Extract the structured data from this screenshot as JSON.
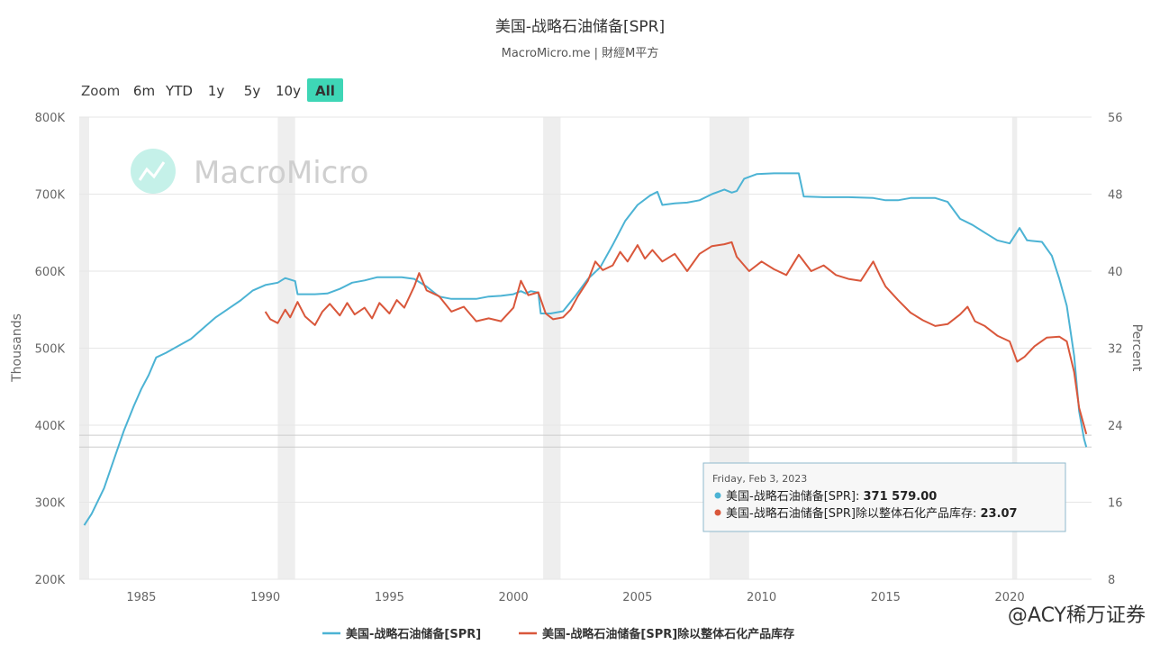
{
  "chart_data": {
    "type": "line",
    "title": "美国-战略石油储备[SPR]",
    "subtitle": "MacroMicro.me | 財經M平方",
    "watermark": "MacroMicro",
    "credit": "@ACY稀万证券",
    "y_left": {
      "title": "Thousands",
      "range": [
        200000,
        800000
      ],
      "ticks": [
        {
          "v": 200000,
          "label": "200K"
        },
        {
          "v": 300000,
          "label": "300K"
        },
        {
          "v": 400000,
          "label": "400K"
        },
        {
          "v": 500000,
          "label": "500K"
        },
        {
          "v": 600000,
          "label": "600K"
        },
        {
          "v": 700000,
          "label": "700K"
        },
        {
          "v": 800000,
          "label": "800K"
        }
      ]
    },
    "y_right": {
      "title": "Percent",
      "range": [
        8,
        56
      ],
      "ticks": [
        {
          "v": 8,
          "label": "8"
        },
        {
          "v": 16,
          "label": "16"
        },
        {
          "v": 24,
          "label": "24"
        },
        {
          "v": 32,
          "label": "32"
        },
        {
          "v": 40,
          "label": "40"
        },
        {
          "v": 48,
          "label": "48"
        },
        {
          "v": 56,
          "label": "56"
        }
      ]
    },
    "x_axis": {
      "range": [
        1982.5,
        2023.3
      ],
      "ticks": [
        {
          "v": 1985,
          "label": "1985"
        },
        {
          "v": 1990,
          "label": "1990"
        },
        {
          "v": 1995,
          "label": "1995"
        },
        {
          "v": 2000,
          "label": "2000"
        },
        {
          "v": 2005,
          "label": "2005"
        },
        {
          "v": 2010,
          "label": "2010"
        },
        {
          "v": 2015,
          "label": "2015"
        },
        {
          "v": 2020,
          "label": "2020"
        }
      ]
    },
    "grid": true,
    "legend_position": "bottom-center",
    "recession_bands": [
      [
        1982.5,
        1982.9
      ],
      [
        1990.5,
        1991.2
      ],
      [
        2001.2,
        2001.9
      ],
      [
        2007.9,
        2009.5
      ],
      [
        2020.1,
        2020.3
      ]
    ],
    "zoom": {
      "label": "Zoom",
      "buttons": [
        "6m",
        "YTD",
        "1y",
        "5y",
        "10y",
        "All"
      ],
      "active": "All"
    },
    "series": [
      {
        "name": "美国-战略石油储备[SPR]",
        "axis": "left",
        "color": "#4cb3d4",
        "points": [
          [
            1982.7,
            270000
          ],
          [
            1983.0,
            285000
          ],
          [
            1983.5,
            318000
          ],
          [
            1984.0,
            365000
          ],
          [
            1984.3,
            393000
          ],
          [
            1984.7,
            425000
          ],
          [
            1985.0,
            447000
          ],
          [
            1985.3,
            465000
          ],
          [
            1985.6,
            488000
          ],
          [
            1986.0,
            494000
          ],
          [
            1986.5,
            503000
          ],
          [
            1987.0,
            512000
          ],
          [
            1987.5,
            526000
          ],
          [
            1988.0,
            540000
          ],
          [
            1988.5,
            551000
          ],
          [
            1989.0,
            562000
          ],
          [
            1989.5,
            575000
          ],
          [
            1990.0,
            582000
          ],
          [
            1990.5,
            585000
          ],
          [
            1990.8,
            591000
          ],
          [
            1991.2,
            587000
          ],
          [
            1991.3,
            570000
          ],
          [
            1992.0,
            570000
          ],
          [
            1992.5,
            571000
          ],
          [
            1993.0,
            577000
          ],
          [
            1993.5,
            585000
          ],
          [
            1994.0,
            588000
          ],
          [
            1994.5,
            592000
          ],
          [
            1995.0,
            592000
          ],
          [
            1995.5,
            592000
          ],
          [
            1996.0,
            590000
          ],
          [
            1996.5,
            580000
          ],
          [
            1997.0,
            567000
          ],
          [
            1997.5,
            564000
          ],
          [
            1998.0,
            564000
          ],
          [
            1998.5,
            564000
          ],
          [
            1999.0,
            567000
          ],
          [
            1999.5,
            568000
          ],
          [
            2000.0,
            570000
          ],
          [
            2000.3,
            574000
          ],
          [
            2000.5,
            571000
          ],
          [
            2000.7,
            574000
          ],
          [
            2001.0,
            572000
          ],
          [
            2001.1,
            545000
          ],
          [
            2001.5,
            545000
          ],
          [
            2002.0,
            548000
          ],
          [
            2002.5,
            568000
          ],
          [
            2003.0,
            590000
          ],
          [
            2003.5,
            605000
          ],
          [
            2004.0,
            634000
          ],
          [
            2004.5,
            665000
          ],
          [
            2005.0,
            686000
          ],
          [
            2005.5,
            698000
          ],
          [
            2005.8,
            703000
          ],
          [
            2006.0,
            686000
          ],
          [
            2006.5,
            688000
          ],
          [
            2007.0,
            689000
          ],
          [
            2007.5,
            692000
          ],
          [
            2008.0,
            700000
          ],
          [
            2008.5,
            706000
          ],
          [
            2008.8,
            702000
          ],
          [
            2009.0,
            704000
          ],
          [
            2009.3,
            720000
          ],
          [
            2009.8,
            726000
          ],
          [
            2010.5,
            727000
          ],
          [
            2011.0,
            727000
          ],
          [
            2011.5,
            727000
          ],
          [
            2011.7,
            697000
          ],
          [
            2012.5,
            696000
          ],
          [
            2013.5,
            696000
          ],
          [
            2014.5,
            695000
          ],
          [
            2015.0,
            692000
          ],
          [
            2015.5,
            692000
          ],
          [
            2016.0,
            695000
          ],
          [
            2016.5,
            695000
          ],
          [
            2017.0,
            695000
          ],
          [
            2017.5,
            690000
          ],
          [
            2018.0,
            668000
          ],
          [
            2018.5,
            660000
          ],
          [
            2019.0,
            650000
          ],
          [
            2019.5,
            640000
          ],
          [
            2020.0,
            636000
          ],
          [
            2020.4,
            656000
          ],
          [
            2020.7,
            640000
          ],
          [
            2021.3,
            638000
          ],
          [
            2021.7,
            620000
          ],
          [
            2022.0,
            590000
          ],
          [
            2022.3,
            555000
          ],
          [
            2022.6,
            490000
          ],
          [
            2022.8,
            418000
          ],
          [
            2023.0,
            382000
          ],
          [
            2023.09,
            371579
          ]
        ]
      },
      {
        "name": "美国-战略石油储备[SPR]除以整体石化产品库存",
        "axis": "right",
        "color": "#d9573b",
        "points": [
          [
            1990.0,
            35.8
          ],
          [
            1990.2,
            35.0
          ],
          [
            1990.5,
            34.6
          ],
          [
            1990.8,
            36.0
          ],
          [
            1991.0,
            35.2
          ],
          [
            1991.3,
            36.8
          ],
          [
            1991.6,
            35.3
          ],
          [
            1992.0,
            34.4
          ],
          [
            1992.3,
            35.8
          ],
          [
            1992.6,
            36.6
          ],
          [
            1993.0,
            35.4
          ],
          [
            1993.3,
            36.7
          ],
          [
            1993.6,
            35.5
          ],
          [
            1994.0,
            36.2
          ],
          [
            1994.3,
            35.1
          ],
          [
            1994.6,
            36.7
          ],
          [
            1995.0,
            35.6
          ],
          [
            1995.3,
            37.0
          ],
          [
            1995.6,
            36.2
          ],
          [
            1996.0,
            38.4
          ],
          [
            1996.2,
            39.8
          ],
          [
            1996.5,
            38.0
          ],
          [
            1997.0,
            37.4
          ],
          [
            1997.5,
            35.8
          ],
          [
            1998.0,
            36.3
          ],
          [
            1998.5,
            34.8
          ],
          [
            1999.0,
            35.1
          ],
          [
            1999.5,
            34.8
          ],
          [
            2000.0,
            36.2
          ],
          [
            2000.3,
            39.0
          ],
          [
            2000.6,
            37.5
          ],
          [
            2001.0,
            37.8
          ],
          [
            2001.3,
            35.6
          ],
          [
            2001.6,
            35.0
          ],
          [
            2002.0,
            35.2
          ],
          [
            2002.3,
            36.0
          ],
          [
            2002.6,
            37.4
          ],
          [
            2003.0,
            39.0
          ],
          [
            2003.3,
            41.0
          ],
          [
            2003.6,
            40.1
          ],
          [
            2004.0,
            40.6
          ],
          [
            2004.3,
            42.0
          ],
          [
            2004.6,
            41.0
          ],
          [
            2005.0,
            42.7
          ],
          [
            2005.3,
            41.3
          ],
          [
            2005.6,
            42.2
          ],
          [
            2006.0,
            41.0
          ],
          [
            2006.5,
            41.8
          ],
          [
            2007.0,
            40.0
          ],
          [
            2007.5,
            41.8
          ],
          [
            2008.0,
            42.6
          ],
          [
            2008.5,
            42.8
          ],
          [
            2008.8,
            43.0
          ],
          [
            2009.0,
            41.5
          ],
          [
            2009.5,
            40.0
          ],
          [
            2010.0,
            41.0
          ],
          [
            2010.5,
            40.2
          ],
          [
            2011.0,
            39.6
          ],
          [
            2011.5,
            41.7
          ],
          [
            2012.0,
            40.0
          ],
          [
            2012.5,
            40.6
          ],
          [
            2013.0,
            39.6
          ],
          [
            2013.5,
            39.2
          ],
          [
            2014.0,
            39.0
          ],
          [
            2014.5,
            41.0
          ],
          [
            2014.8,
            39.4
          ],
          [
            2015.0,
            38.4
          ],
          [
            2015.5,
            37.0
          ],
          [
            2016.0,
            35.7
          ],
          [
            2016.5,
            34.9
          ],
          [
            2017.0,
            34.3
          ],
          [
            2017.5,
            34.5
          ],
          [
            2018.0,
            35.5
          ],
          [
            2018.3,
            36.3
          ],
          [
            2018.6,
            34.8
          ],
          [
            2019.0,
            34.3
          ],
          [
            2019.5,
            33.3
          ],
          [
            2020.0,
            32.7
          ],
          [
            2020.3,
            30.6
          ],
          [
            2020.6,
            31.1
          ],
          [
            2021.0,
            32.2
          ],
          [
            2021.5,
            33.1
          ],
          [
            2022.0,
            33.2
          ],
          [
            2022.3,
            32.7
          ],
          [
            2022.6,
            29.5
          ],
          [
            2022.8,
            25.8
          ],
          [
            2023.09,
            23.07
          ]
        ]
      }
    ],
    "tooltip": {
      "date": "Friday, Feb 3, 2023",
      "items": [
        {
          "label": "美国-战略石油储备[SPR]: ",
          "value": "371 579.00",
          "color": "#4cb3d4"
        },
        {
          "label": "美国-战略石油储备[SPR]除以整体石化产品库存: ",
          "value": "23.07",
          "color": "#d9573b"
        }
      ]
    }
  }
}
